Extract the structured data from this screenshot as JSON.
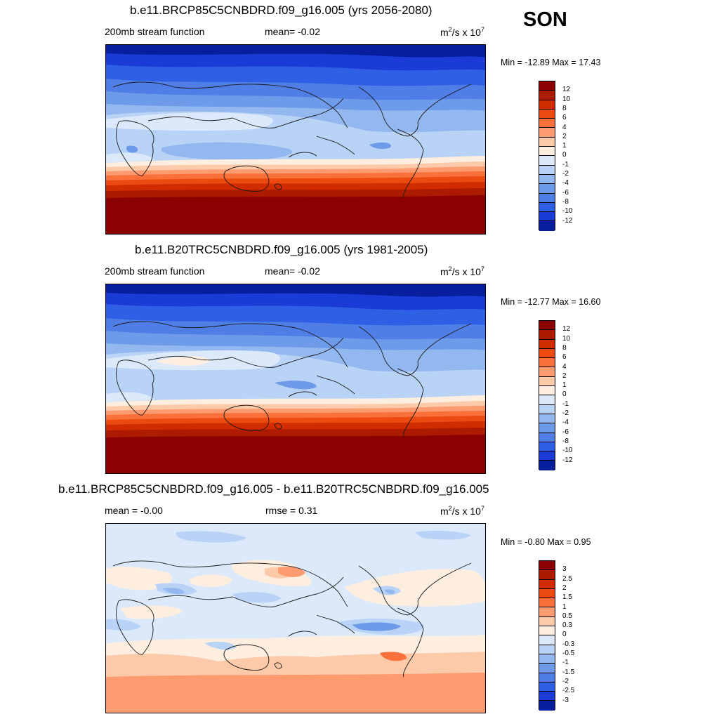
{
  "season": "SON",
  "panels": [
    {
      "title": "b.e11.BRCP85C5CNBDRD.f09_g16.005 (yrs 2056-2080)",
      "left_label": "200mb stream function",
      "mid_label": "mean=  -0.02",
      "unit_base": "m",
      "unit_sup1": "2",
      "unit_mid": "/s x 10",
      "unit_sup2": "7",
      "minmax": "Min = -12.89 Max =  17.43",
      "colorbar": {
        "labels": [
          "12",
          "10",
          "8",
          "6",
          "4",
          "2",
          "1",
          "0",
          "-1",
          "-2",
          "-4",
          "-6",
          "-8",
          "-10",
          "-12"
        ],
        "colors": [
          "#8b0000",
          "#ac1a00",
          "#d12b00",
          "#ec4a10",
          "#f9703a",
          "#fc9a70",
          "#fcc9a9",
          "#fdeee0",
          "#dbe9fb",
          "#b8d3f5",
          "#93b8f0",
          "#6e9be9",
          "#4f7ee6",
          "#2f5fe4",
          "#1b3bd7",
          "#071e9f"
        ]
      }
    },
    {
      "title": "b.e11.B20TRC5CNBDRD.f09_g16.005 (yrs 1981-2005)",
      "left_label": "200mb stream function",
      "mid_label": "mean=  -0.02",
      "unit_base": "m",
      "unit_sup1": "2",
      "unit_mid": "/s x 10",
      "unit_sup2": "7",
      "minmax": "Min = -12.77 Max =  16.60",
      "colorbar": {
        "labels": [
          "12",
          "10",
          "8",
          "6",
          "4",
          "2",
          "1",
          "0",
          "-1",
          "-2",
          "-4",
          "-6",
          "-8",
          "-10",
          "-12"
        ],
        "colors": [
          "#8b0000",
          "#ac1a00",
          "#d12b00",
          "#ec4a10",
          "#f9703a",
          "#fc9a70",
          "#fcc9a9",
          "#fdeee0",
          "#dbe9fb",
          "#b8d3f5",
          "#93b8f0",
          "#6e9be9",
          "#4f7ee6",
          "#2f5fe4",
          "#1b3bd7",
          "#071e9f"
        ]
      }
    },
    {
      "title": "b.e11.BRCP85C5CNBDRD.f09_g16.005 - b.e11.B20TRC5CNBDRD.f09_g16.005",
      "left_label": "mean =  -0.00",
      "mid_label": "rmse =   0.31",
      "unit_base": "m",
      "unit_sup1": "2",
      "unit_mid": "/s x 10",
      "unit_sup2": "7",
      "minmax": "Min =  -0.80 Max =   0.95",
      "colorbar": {
        "labels": [
          "3",
          "2.5",
          "2",
          "1.5",
          "1",
          "0.5",
          "0.3",
          "0",
          "-0.3",
          "-0.5",
          "-1",
          "-1.5",
          "-2",
          "-2.5",
          "-3"
        ],
        "colors": [
          "#8b0000",
          "#ac1a00",
          "#d12b00",
          "#ec4a10",
          "#f9703a",
          "#fc9a70",
          "#fcc9a9",
          "#fdeee0",
          "#dbe9fb",
          "#b8d3f5",
          "#93b8f0",
          "#6e9be9",
          "#4f7ee6",
          "#2f5fe4",
          "#1b3bd7",
          "#071e9f"
        ]
      }
    }
  ]
}
